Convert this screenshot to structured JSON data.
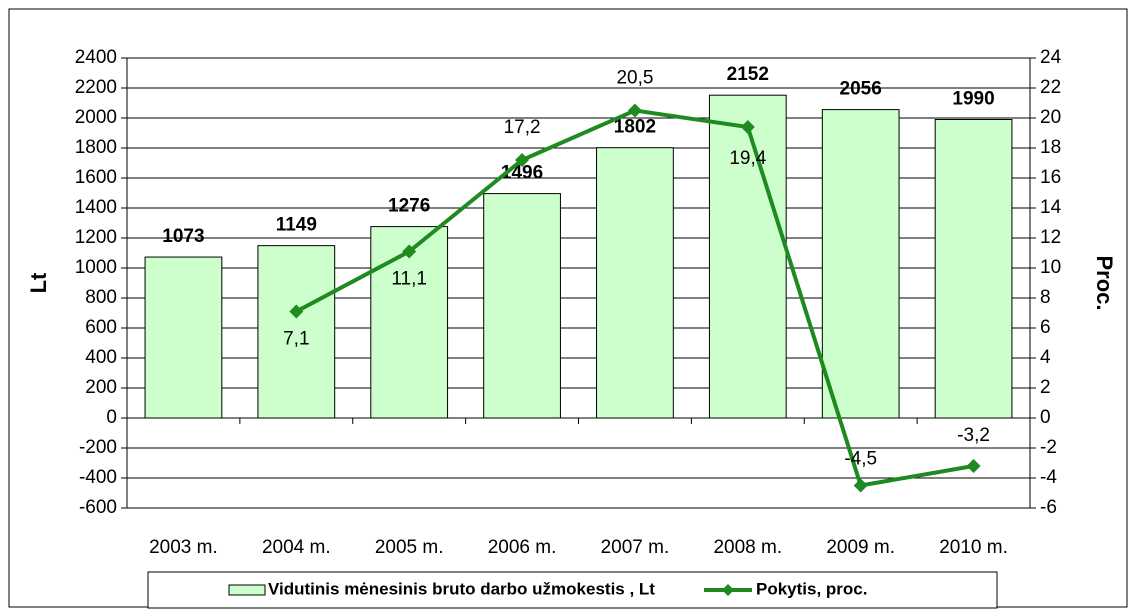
{
  "chart_data": {
    "type": "bar-line",
    "categories": [
      "2003 m.",
      "2004 m.",
      "2005 m.",
      "2006 m.",
      "2007 m.",
      "2008 m.",
      "2009 m.",
      "2010 m."
    ],
    "series": [
      {
        "name": "Vidutinis mėnesinis bruto darbo užmokestis , Lt",
        "type": "bar",
        "color": "#ccffcc",
        "values": [
          1073,
          1149,
          1276,
          1496,
          1802,
          2152,
          2056,
          1990
        ]
      },
      {
        "name": "Pokytis, proc.",
        "type": "line",
        "axis": "y2",
        "color": "#1f8a1f",
        "values": [
          null,
          7.1,
          11.1,
          17.2,
          20.5,
          19.4,
          -4.5,
          -3.2
        ],
        "value_labels": [
          null,
          "7,1",
          "11,1",
          "17,2",
          "20,5",
          "19,4",
          "-4,5",
          "-3,2"
        ]
      }
    ],
    "ylabel": "Lt",
    "y2label": "Proc.",
    "ylim": [
      -600,
      2400
    ],
    "yticks": [
      -600,
      -400,
      -200,
      0,
      200,
      400,
      600,
      800,
      1000,
      1200,
      1400,
      1600,
      1800,
      2000,
      2200,
      2400
    ],
    "y2lim": [
      -6,
      24
    ],
    "y2ticks": [
      -6,
      -4,
      -2,
      0,
      2,
      4,
      6,
      8,
      10,
      12,
      14,
      16,
      18,
      20,
      22,
      24
    ],
    "grid": true,
    "legend": "bottom"
  }
}
